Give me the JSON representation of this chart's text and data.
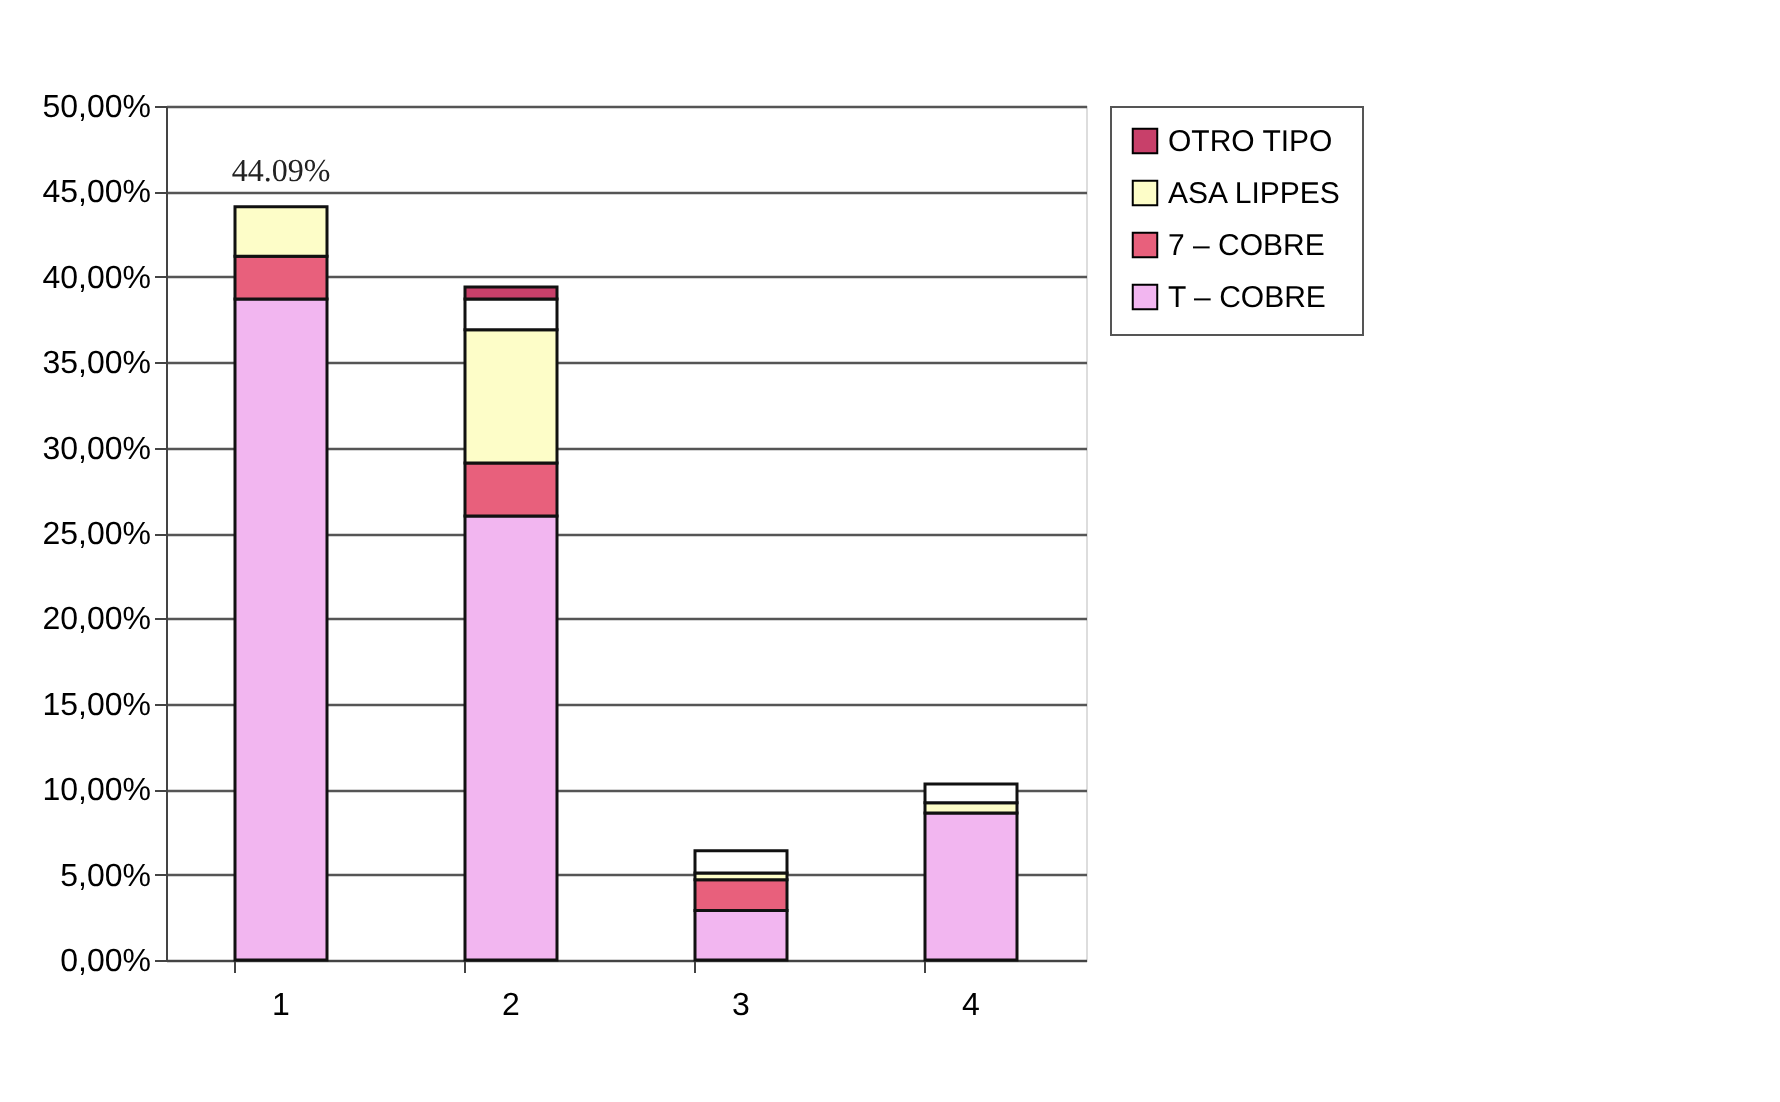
{
  "chart_data": {
    "type": "bar",
    "stacked": true,
    "categories": [
      "1",
      "2",
      "3",
      "4"
    ],
    "series": [
      {
        "name": "T – COBRE",
        "color": "#f2b6f0",
        "values": [
          38.7,
          26.0,
          2.9,
          8.6
        ]
      },
      {
        "name": "7 – COBRE",
        "color": "#e8607c",
        "values": [
          2.5,
          3.1,
          1.8,
          null
        ]
      },
      {
        "name": "ASA LIPPES",
        "color": "#fdfdc8",
        "values": [
          2.9,
          7.8,
          0.4,
          0.6
        ]
      },
      {
        "name": null,
        "color": "#ffffff",
        "values": [
          null,
          1.8,
          1.3,
          1.1
        ]
      },
      {
        "name": "OTRO TIPO",
        "color": "#c8406a",
        "values": [
          null,
          0.7,
          null,
          null
        ]
      }
    ],
    "ylim": [
      0,
      50
    ],
    "yticks": [
      {
        "value": 0,
        "label": "0,00%"
      },
      {
        "value": 5,
        "label": "5,00%"
      },
      {
        "value": 10,
        "label": "10,00%"
      },
      {
        "value": 15,
        "label": "15,00%"
      },
      {
        "value": 20,
        "label": "20,00%"
      },
      {
        "value": 25,
        "label": "25,00%"
      },
      {
        "value": 30,
        "label": "30,00%"
      },
      {
        "value": 35,
        "label": "35,00%"
      },
      {
        "value": 40,
        "label": "40,00%"
      },
      {
        "value": 45,
        "label": "45,00%"
      },
      {
        "value": 50,
        "label": "50,00%"
      }
    ],
    "annotations": [
      {
        "text": "44.09%",
        "x": "1",
        "y": 44.09
      }
    ],
    "grid": "y",
    "legend": "right"
  }
}
